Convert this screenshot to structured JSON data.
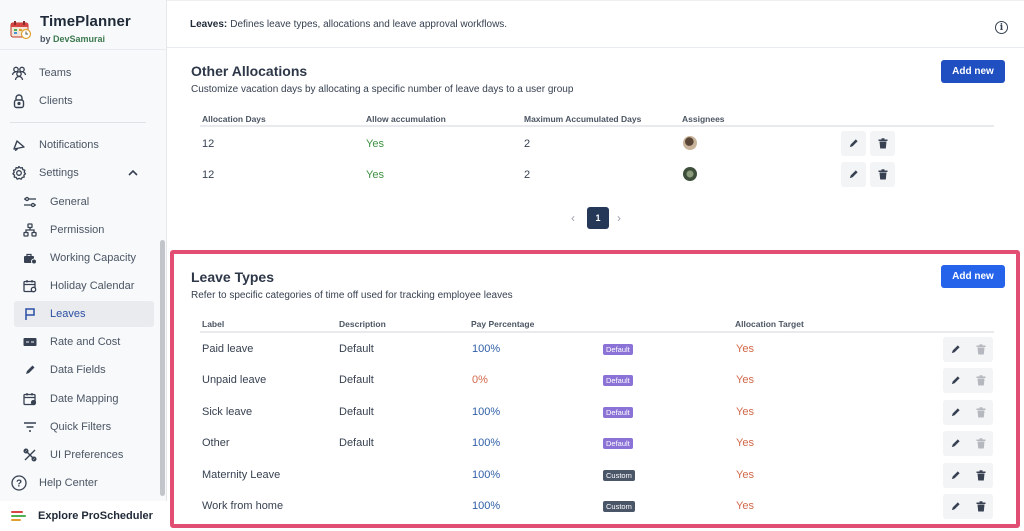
{
  "app": {
    "title": "TimePlanner",
    "by_prefix": "by",
    "by_name": "DevSamurai"
  },
  "sidebar": {
    "top_items": [
      {
        "label": "Teams",
        "icon": "users-icon"
      },
      {
        "label": "Clients",
        "icon": "lock-icon"
      }
    ],
    "notifications": {
      "label": "Notifications",
      "icon": "megaphone-icon"
    },
    "settings": {
      "label": "Settings",
      "icon": "gear-icon",
      "expanded": true
    },
    "settings_items": [
      {
        "label": "General",
        "icon": "sliders-icon"
      },
      {
        "label": "Permission",
        "icon": "hierarchy-icon"
      },
      {
        "label": "Working Capacity",
        "icon": "briefcase-icon"
      },
      {
        "label": "Holiday Calendar",
        "icon": "calendar-icon"
      },
      {
        "label": "Leaves",
        "icon": "flag-icon",
        "active": true
      },
      {
        "label": "Rate and Cost",
        "icon": "money-icon"
      },
      {
        "label": "Data Fields",
        "icon": "pencil-icon"
      },
      {
        "label": "Date Mapping",
        "icon": "calendar-map-icon"
      },
      {
        "label": "Quick Filters",
        "icon": "filter-icon"
      },
      {
        "label": "UI Preferences",
        "icon": "tools-icon"
      }
    ],
    "help": {
      "label": "Help Center",
      "icon": "question-icon"
    },
    "explore": {
      "label": "Explore ProScheduler"
    }
  },
  "topbar": {
    "label": "Leaves:",
    "text": "Defines leave types, allocations and leave approval workflows."
  },
  "other_allocations": {
    "title": "Other Allocations",
    "description": "Customize vacation days by allocating a specific number of leave days to a user group",
    "add_label": "Add new",
    "columns": [
      "Allocation Days",
      "Allow accumulation",
      "Maximum Accumulated Days",
      "Assignees"
    ],
    "rows": [
      {
        "days": "12",
        "accumulation": "Yes",
        "max_days": "2",
        "assignee": "avatar-1"
      },
      {
        "days": "12",
        "accumulation": "Yes",
        "max_days": "2",
        "assignee": "avatar-2"
      }
    ],
    "pagination": {
      "current": "1",
      "prev": "‹",
      "next": "›"
    }
  },
  "leave_types": {
    "title": "Leave Types",
    "description": "Refer to specific categories of time off used for tracking employee leaves",
    "add_label": "Add new",
    "columns": [
      "Label",
      "Description",
      "Pay Percentage",
      "",
      "Allocation Target"
    ],
    "rows": [
      {
        "label": "Paid leave",
        "description": "Default",
        "pay": "100%",
        "type": "Default",
        "target": "Yes"
      },
      {
        "label": "Unpaid leave",
        "description": "Default",
        "pay": "0%",
        "type": "Default",
        "target": "Yes"
      },
      {
        "label": "Sick leave",
        "description": "Default",
        "pay": "100%",
        "type": "Default",
        "target": "Yes"
      },
      {
        "label": "Other",
        "description": "Default",
        "pay": "100%",
        "type": "Default",
        "target": "Yes"
      },
      {
        "label": "Maternity Leave",
        "description": "",
        "pay": "100%",
        "type": "Custom",
        "target": "Yes"
      },
      {
        "label": "Work from home",
        "description": "",
        "pay": "100%",
        "type": "Custom",
        "target": "Yes"
      }
    ]
  },
  "colors": {
    "primary_button": "#1f4fc1",
    "primary_button_alt": "#2563eb",
    "highlight_border": "#e24d74",
    "badge_default": "#8b72d6",
    "badge_custom": "#4a5568",
    "yes_green": "#3f9142",
    "yes_red": "#d2694a",
    "pct_blue": "#2f5fa6"
  }
}
